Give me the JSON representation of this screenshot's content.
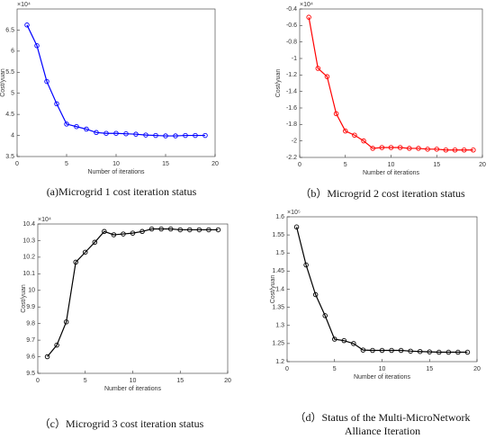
{
  "chart_data": [
    {
      "type": "line",
      "caption": "(a)Microgrid 1 cost iteration status",
      "xlabel": "Number of iterations",
      "ylabel": "Cost/yuan",
      "exponent": "×10⁴",
      "x": [
        1,
        2,
        3,
        4,
        5,
        6,
        7,
        8,
        9,
        10,
        11,
        12,
        13,
        14,
        15,
        16,
        17,
        18,
        19
      ],
      "series": [
        {
          "color": "#0000ff",
          "values": [
            6.62,
            6.13,
            5.28,
            4.75,
            4.27,
            4.21,
            4.15,
            4.07,
            4.05,
            4.05,
            4.04,
            4.03,
            4.01,
            4.0,
            3.99,
            3.99,
            4.0,
            4.0,
            4.0
          ]
        }
      ],
      "xlim": [
        0,
        20
      ],
      "xticks": [
        0,
        5,
        10,
        15,
        20
      ],
      "ylim": [
        3.5,
        7
      ],
      "yticks": [
        3.5,
        4,
        4.5,
        5,
        5.5,
        6,
        6.5
      ]
    },
    {
      "type": "line",
      "caption": "（b）Microgrid 2 cost iteration status",
      "xlabel": "Number of iterations",
      "ylabel": "Cost/yuan",
      "exponent": "×10⁴",
      "x": [
        1,
        2,
        3,
        4,
        5,
        6,
        7,
        8,
        9,
        10,
        11,
        12,
        13,
        14,
        15,
        16,
        17,
        18,
        19
      ],
      "series": [
        {
          "color": "#ff0000",
          "values": [
            -0.5,
            -1.12,
            -1.22,
            -1.67,
            -1.88,
            -1.93,
            -2.0,
            -2.09,
            -2.08,
            -2.08,
            -2.08,
            -2.09,
            -2.09,
            -2.1,
            -2.1,
            -2.11,
            -2.11,
            -2.11,
            -2.11
          ]
        }
      ],
      "xlim": [
        0,
        20
      ],
      "xticks": [
        0,
        5,
        10,
        15,
        20
      ],
      "ylim": [
        -2.2,
        -0.4
      ],
      "yticks": [
        -2.2,
        -2,
        -1.8,
        -1.6,
        -1.4,
        -1.2,
        -1,
        -0.8,
        -0.6,
        -0.4
      ]
    },
    {
      "type": "line",
      "caption": "（c）Microgrid 3 cost iteration status",
      "xlabel": "Number of iterations",
      "ylabel": "Cost/yuan",
      "exponent": "×10⁴",
      "x": [
        1,
        2,
        3,
        4,
        5,
        6,
        7,
        8,
        9,
        10,
        11,
        12,
        13,
        14,
        15,
        16,
        17,
        18,
        19
      ],
      "series": [
        {
          "color": "#000000",
          "values": [
            9.6,
            9.67,
            9.81,
            10.17,
            10.23,
            10.29,
            10.355,
            10.335,
            10.34,
            10.345,
            10.355,
            10.37,
            10.37,
            10.37,
            10.365,
            10.365,
            10.365,
            10.365,
            10.365
          ]
        }
      ],
      "xlim": [
        0,
        20
      ],
      "xticks": [
        0,
        5,
        10,
        15,
        20
      ],
      "ylim": [
        9.5,
        10.4
      ],
      "yticks": [
        9.5,
        9.6,
        9.7,
        9.8,
        9.9,
        10,
        10.1,
        10.2,
        10.3,
        10.4
      ]
    },
    {
      "type": "line",
      "caption": "（d）Status of the Multi-MicroNetwork Alliance Iteration",
      "xlabel": "Number of iterations",
      "ylabel": "Cost/yuan",
      "exponent": "×10⁵",
      "x": [
        1,
        2,
        3,
        4,
        5,
        6,
        7,
        8,
        9,
        10,
        11,
        12,
        13,
        14,
        15,
        16,
        17,
        18,
        19
      ],
      "series": [
        {
          "color": "#000000",
          "values": [
            1.572,
            1.467,
            1.385,
            1.327,
            1.262,
            1.258,
            1.25,
            1.232,
            1.231,
            1.231,
            1.231,
            1.231,
            1.229,
            1.228,
            1.227,
            1.226,
            1.226,
            1.226,
            1.226
          ]
        }
      ],
      "xlim": [
        0,
        20
      ],
      "xticks": [
        0,
        5,
        10,
        15,
        20
      ],
      "ylim": [
        1.2,
        1.6
      ],
      "yticks": [
        1.2,
        1.25,
        1.3,
        1.35,
        1.4,
        1.45,
        1.5,
        1.55,
        1.6
      ]
    }
  ]
}
